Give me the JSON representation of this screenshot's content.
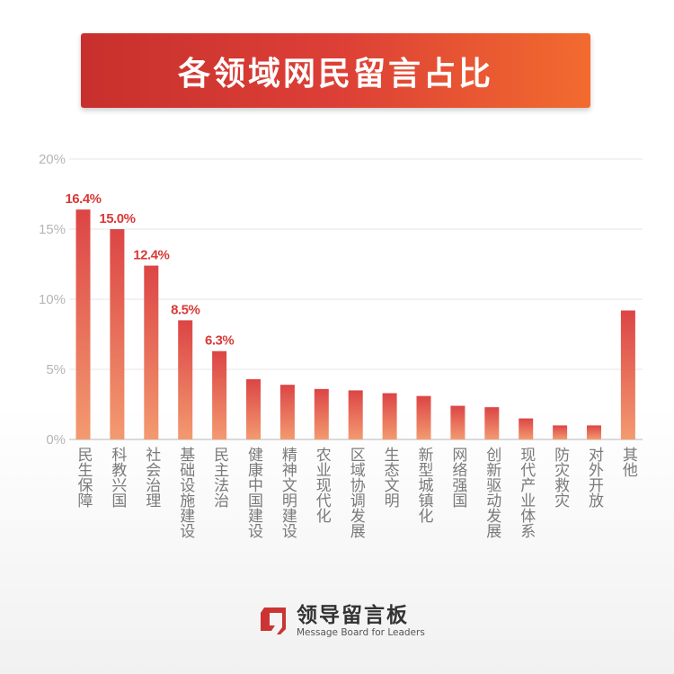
{
  "chart_data": {
    "type": "bar",
    "title": "各领域网民留言占比",
    "categories": [
      "民生保障",
      "科教兴国",
      "社会治理",
      "基础设施建设",
      "民主法治",
      "健康中国建设",
      "精神文明建设",
      "农业现代化",
      "区域协调发展",
      "生态文明",
      "新型城镇化",
      "网络强国",
      "创新驱动发展",
      "现代产业体系",
      "防灾救灾",
      "对外开放",
      "其他"
    ],
    "values": [
      16.4,
      15.0,
      12.4,
      8.5,
      6.3,
      4.3,
      3.9,
      3.6,
      3.5,
      3.3,
      3.1,
      2.4,
      2.3,
      1.5,
      1.0,
      1.0,
      9.2
    ],
    "data_labels": [
      "16.4%",
      "15.0%",
      "12.4%",
      "8.5%",
      "6.3%",
      null,
      null,
      null,
      null,
      null,
      null,
      null,
      null,
      null,
      null,
      null,
      null
    ],
    "yticks": [
      0,
      5,
      10,
      15,
      20
    ],
    "ytick_labels": [
      "0%",
      "5%",
      "10%",
      "15%",
      "20%"
    ],
    "ylim": [
      0,
      20
    ],
    "xlabel": "",
    "ylabel": "",
    "grid": true,
    "colors": {
      "bar_top": "#dc4545",
      "bar_bottom": "#f39a70",
      "label": "#d93a37"
    }
  },
  "logo": {
    "name_cn": "领导留言板",
    "name_en": "Message Board for Leaders"
  }
}
